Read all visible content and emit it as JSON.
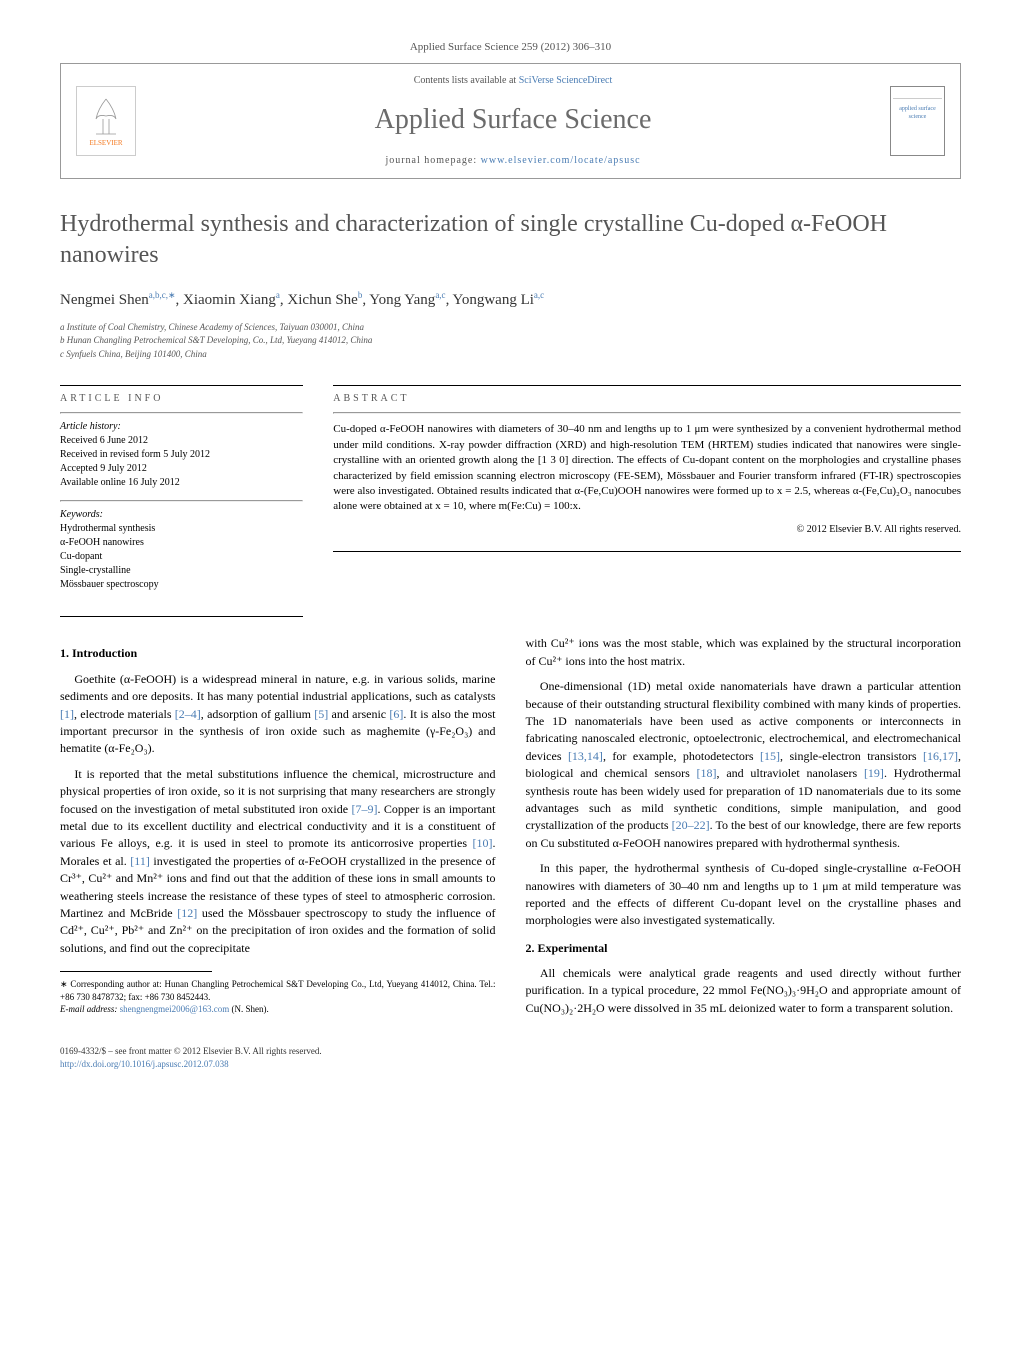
{
  "journal_ref": "Applied Surface Science 259 (2012) 306–310",
  "header": {
    "contents_prefix": "Contents lists available at ",
    "contents_link": "SciVerse ScienceDirect",
    "journal_name": "Applied Surface Science",
    "homepage_prefix": "journal homepage: ",
    "homepage_url": "www.elsevier.com/locate/apsusc",
    "publisher_logo": "ELSEVIER",
    "cover_text": "applied surface science"
  },
  "title": "Hydrothermal synthesis and characterization of single crystalline Cu-doped α-FeOOH nanowires",
  "authors_html": "Nengmei Shen<sup>a,b,c,∗</sup>, Xiaomin Xiang<sup>a</sup>, Xichun She<sup>b</sup>, Yong Yang<sup>a,c</sup>, Yongwang Li<sup>a,c</sup>",
  "affiliations": [
    "a Institute of Coal Chemistry, Chinese Academy of Sciences, Taiyuan 030001, China",
    "b Hunan Changling Petrochemical S&T Developing, Co., Ltd, Yueyang 414012, China",
    "c Synfuels China, Beijing 101400, China"
  ],
  "article_info": {
    "heading": "ARTICLE INFO",
    "history_head": "Article history:",
    "history": [
      "Received 6 June 2012",
      "Received in revised form 5 July 2012",
      "Accepted 9 July 2012",
      "Available online 16 July 2012"
    ],
    "keywords_head": "Keywords:",
    "keywords": [
      "Hydrothermal synthesis",
      "α-FeOOH nanowires",
      "Cu-dopant",
      "Single-crystalline",
      "Mössbauer spectroscopy"
    ]
  },
  "abstract": {
    "heading": "ABSTRACT",
    "text": "Cu-doped α-FeOOH nanowires with diameters of 30–40 nm and lengths up to 1 μm were synthesized by a convenient hydrothermal method under mild conditions. X-ray powder diffraction (XRD) and high-resolution TEM (HRTEM) studies indicated that nanowires were single-crystalline with an oriented growth along the [1 3 0] direction. The effects of Cu-dopant content on the morphologies and crystalline phases characterized by field emission scanning electron microscopy (FE-SEM), Mössbauer and Fourier transform infrared (FT-IR) spectroscopies were also investigated. Obtained results indicated that α-(Fe,Cu)OOH nanowires were formed up to x = 2.5, whereas α-(Fe,Cu)₂O₃ nanocubes alone were obtained at x = 10, where m(Fe:Cu) = 100:x.",
    "copyright": "© 2012 Elsevier B.V. All rights reserved."
  },
  "sections": {
    "intro_head": "1. Introduction",
    "intro_p1": "Goethite (α-FeOOH) is a widespread mineral in nature, e.g. in various solids, marine sediments and ore deposits. It has many potential industrial applications, such as catalysts [1], electrode materials [2–4], adsorption of gallium [5] and arsenic [6]. It is also the most important precursor in the synthesis of iron oxide such as maghemite (γ-Fe₂O₃) and hematite (α-Fe₂O₃).",
    "intro_p2": "It is reported that the metal substitutions influence the chemical, microstructure and physical properties of iron oxide, so it is not surprising that many researchers are strongly focused on the investigation of metal substituted iron oxide [7–9]. Copper is an important metal due to its excellent ductility and electrical conductivity and it is a constituent of various Fe alloys, e.g. it is used in steel to promote its anticorrosive properties [10]. Morales et al. [11] investigated the properties of α-FeOOH crystallized in the presence of Cr³⁺, Cu²⁺ and Mn²⁺ ions and find out that the addition of these ions in small amounts to weathering steels increase the resistance of these types of steel to atmospheric corrosion. Martinez and McBride [12] used the Mössbauer spectroscopy to study the influence of Cd²⁺, Cu²⁺, Pb²⁺ and Zn²⁺ on the precipitation of iron oxides and the formation of solid solutions, and find out the coprecipitate",
    "intro_p3": "with Cu²⁺ ions was the most stable, which was explained by the structural incorporation of Cu²⁺ ions into the host matrix.",
    "intro_p4": "One-dimensional (1D) metal oxide nanomaterials have drawn a particular attention because of their outstanding structural flexibility combined with many kinds of properties. The 1D nanomaterials have been used as active components or interconnects in fabricating nanoscaled electronic, optoelectronic, electrochemical, and electromechanical devices [13,14], for example, photodetectors [15], single-electron transistors [16,17], biological and chemical sensors [18], and ultraviolet nanolasers [19]. Hydrothermal synthesis route has been widely used for preparation of 1D nanomaterials due to its some advantages such as mild synthetic conditions, simple manipulation, and good crystallization of the products [20–22]. To the best of our knowledge, there are few reports on Cu substituted α-FeOOH nanowires prepared with hydrothermal synthesis.",
    "intro_p5": "In this paper, the hydrothermal synthesis of Cu-doped single-crystalline α-FeOOH nanowires with diameters of 30–40 nm and lengths up to 1 μm at mild temperature was reported and the effects of different Cu-dopant level on the crystalline phases and morphologies were also investigated systematically.",
    "exp_head": "2. Experimental",
    "exp_p1": "All chemicals were analytical grade reagents and used directly without further purification. In a typical procedure, 22 mmol Fe(NO₃)₃·9H₂O and appropriate amount of Cu(NO₃)₂·2H₂O were dissolved in 35 mL deionized water to form a transparent solution."
  },
  "footnote": {
    "corr": "∗ Corresponding author at: Hunan Changling Petrochemical S&T Developing Co., Ltd, Yueyang 414012, China. Tel.: +86 730 8478732; fax: +86 730 8452443.",
    "email_label": "E-mail address: ",
    "email": "shengnengmei2006@163.com",
    "email_suffix": " (N. Shen)."
  },
  "footer": {
    "issn": "0169-4332/$ – see front matter © 2012 Elsevier B.V. All rights reserved.",
    "doi_url": "http://dx.doi.org/10.1016/j.apsusc.2012.07.038"
  },
  "colors": {
    "link": "#4a7cb3",
    "title_gray": "#555555",
    "elsevier_orange": "#f47920"
  }
}
